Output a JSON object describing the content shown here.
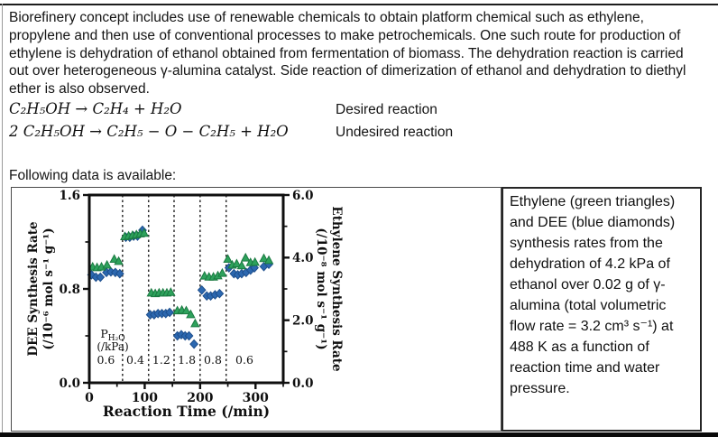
{
  "intro": {
    "text": "Biorefinery concept includes use of renewable chemicals to obtain platform chemical such as ethylene, propylene and then use of conventional processes to make petrochemicals. One such route for production of ethylene is dehydration of ethanol obtained from fermentation of biomass. The dehydration reaction is carried out over heterogeneous γ-alumina catalyst. Side reaction of dimerization of ethanol and dehydration to diethyl ether is also observed."
  },
  "equations": [
    {
      "formula": "C₂H₅OH → C₂H₄ + H₂O",
      "label": "Desired reaction"
    },
    {
      "formula": "2 C₂H₅OH → C₂H₅ − O − C₂H₅ + H₂O",
      "label": "Undesired reaction"
    }
  ],
  "following_text": "Following data is available:",
  "caption": {
    "text": "Ethylene (green triangles) and DEE (blue diamonds) synthesis rates from the dehydration of 4.2 kPa of ethanol over 0.02 g of γ-alumina (total volumetric flow rate = 3.2 cm³ s⁻¹) at 488 K as a function of reaction time and water pressure."
  },
  "colors": {
    "ethylene_green": "#2ea25c",
    "ethylene_green_edge": "#1a7a41",
    "dee_blue": "#2c68b0",
    "dee_blue_edge": "#1d4e8c",
    "axis_black": "#0f0f0f",
    "dash_line": "#2b2b2b"
  },
  "chart_data": {
    "type": "scatter",
    "xlabel": "Reaction Time (/min)",
    "xlim": [
      0,
      350
    ],
    "x_ticks": [
      0,
      100,
      200,
      300
    ],
    "x_tick_labels": [
      "0",
      "100",
      "200",
      "300"
    ],
    "x_minor_ticks": [
      50,
      150,
      250,
      350
    ],
    "left_axis": {
      "label_line1": "DEE Synthesis Rate",
      "label_line2": "(/10⁻⁶ mol s⁻¹ g⁻¹)",
      "lim": [
        0,
        1.6
      ],
      "ticks": [
        0.0,
        0.8,
        1.6
      ],
      "tick_labels": [
        "0.0",
        "0.8",
        "1.6"
      ],
      "minor_ticks": [
        0.4,
        1.2
      ]
    },
    "right_axis": {
      "label_line1": "Ethylene Synthesis Rate",
      "label_line2": "(/10⁻⁸ mol s⁻¹ g⁻¹)",
      "lim": [
        0,
        6
      ],
      "ticks": [
        0.0,
        2.0,
        4.0,
        6.0
      ],
      "tick_labels": [
        "0.0",
        "2.0",
        "4.0",
        "6.0"
      ],
      "minor_ticks": [
        1,
        3,
        5
      ]
    },
    "step_boundaries_min": [
      60,
      107,
      153,
      200,
      247
    ],
    "pressure_annotation": {
      "symbol": "P",
      "subscript": "H₂O",
      "unit": "(/kPa)"
    },
    "pressure_steps": [
      {
        "t_center": 30,
        "label": "0.6"
      },
      {
        "t_center": 83,
        "label": "0.4"
      },
      {
        "t_center": 130,
        "label": "1.2"
      },
      {
        "t_center": 176,
        "label": "1.8"
      },
      {
        "t_center": 223,
        "label": "0.8"
      },
      {
        "t_center": 280,
        "label": "0.6"
      }
    ],
    "series": [
      {
        "name": "DEE",
        "marker": "diamond",
        "axis": "left",
        "units": "/10⁻⁶ mol s⁻¹ g⁻¹",
        "points": [
          [
            4,
            0.92
          ],
          [
            12,
            0.9
          ],
          [
            20,
            0.9
          ],
          [
            31,
            0.94
          ],
          [
            39,
            0.945
          ],
          [
            47,
            0.94
          ],
          [
            55,
            0.93
          ],
          [
            66,
            1.24
          ],
          [
            73,
            1.24
          ],
          [
            80,
            1.25
          ],
          [
            87,
            1.25
          ],
          [
            96,
            1.3
          ],
          [
            110,
            0.58
          ],
          [
            117,
            0.58
          ],
          [
            124,
            0.59
          ],
          [
            131,
            0.59
          ],
          [
            138,
            0.59
          ],
          [
            145,
            0.6
          ],
          [
            159,
            0.4
          ],
          [
            166,
            0.41
          ],
          [
            173,
            0.4
          ],
          [
            180,
            0.4
          ],
          [
            189,
            0.33
          ],
          [
            203,
            0.79
          ],
          [
            212,
            0.74
          ],
          [
            219,
            0.74
          ],
          [
            227,
            0.75
          ],
          [
            235,
            0.76
          ],
          [
            252,
            0.98
          ],
          [
            261,
            0.93
          ],
          [
            268,
            0.92
          ],
          [
            275,
            0.93
          ],
          [
            283,
            0.94
          ],
          [
            291,
            0.96
          ],
          [
            298,
            0.98
          ],
          [
            315,
            0.99
          ],
          [
            324,
            1.01
          ]
        ]
      },
      {
        "name": "Ethylene",
        "marker": "triangle",
        "axis": "right",
        "units": "/10⁻⁸ mol s⁻¹ g⁻¹",
        "points": [
          [
            6,
            3.7
          ],
          [
            14,
            3.68
          ],
          [
            22,
            3.7
          ],
          [
            32,
            3.76
          ],
          [
            45,
            3.95
          ],
          [
            53,
            3.88
          ],
          [
            64,
            4.67
          ],
          [
            71,
            4.69
          ],
          [
            78,
            4.71
          ],
          [
            85,
            4.73
          ],
          [
            92,
            4.76
          ],
          [
            99,
            4.78
          ],
          [
            112,
            2.87
          ],
          [
            119,
            2.85
          ],
          [
            126,
            2.87
          ],
          [
            133,
            2.87
          ],
          [
            140,
            2.87
          ],
          [
            147,
            2.89
          ],
          [
            159,
            2.3
          ],
          [
            167,
            2.32
          ],
          [
            175,
            2.3
          ],
          [
            183,
            2.18
          ],
          [
            191,
            1.89
          ],
          [
            208,
            3.41
          ],
          [
            216,
            3.38
          ],
          [
            224,
            3.38
          ],
          [
            232,
            3.42
          ],
          [
            240,
            3.5
          ],
          [
            250,
            3.95
          ],
          [
            258,
            3.76
          ],
          [
            266,
            3.8
          ],
          [
            275,
            3.74
          ],
          [
            282,
            3.99
          ],
          [
            291,
            3.84
          ],
          [
            299,
            3.85
          ],
          [
            315,
            3.97
          ],
          [
            324,
            3.91
          ]
        ]
      }
    ]
  }
}
